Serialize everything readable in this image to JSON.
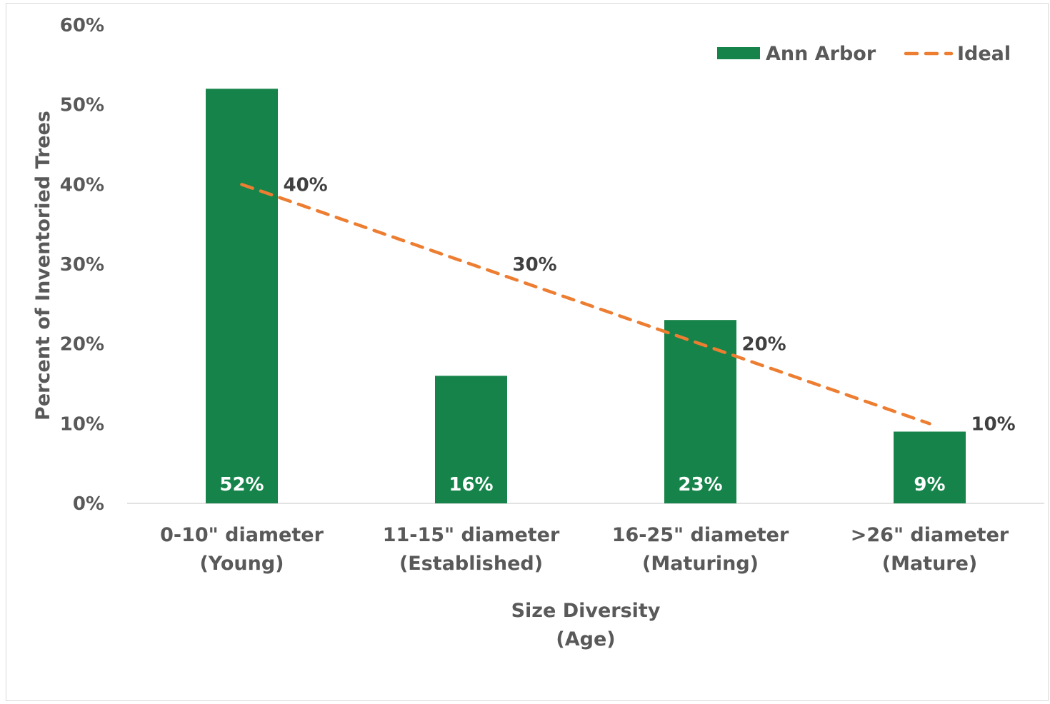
{
  "colors": {
    "bar": "#16844a",
    "ideal": "#ed7d31",
    "axis": "#d9d9d9",
    "text": "#595959"
  },
  "chart_data": {
    "type": "bar",
    "title": "",
    "xlabel": [
      "Size Diversity",
      "(Age)"
    ],
    "ylabel": "Percent of Inventoried Trees",
    "ylim": [
      0,
      60
    ],
    "yticks": [
      "0%",
      "10%",
      "20%",
      "30%",
      "40%",
      "50%",
      "60%"
    ],
    "grid": false,
    "legend_position": "top-right",
    "categories": [
      [
        "0-10\" diameter",
        "(Young)"
      ],
      [
        "11-15\" diameter",
        "(Established)"
      ],
      [
        "16-25\" diameter",
        "(Maturing)"
      ],
      [
        ">26\" diameter",
        "(Mature)"
      ]
    ],
    "series": [
      {
        "name": "Ann Arbor",
        "type": "bar",
        "values": [
          52,
          16,
          23,
          9
        ],
        "labels": [
          "52%",
          "16%",
          "23%",
          "9%"
        ]
      },
      {
        "name": "Ideal",
        "type": "line",
        "style": "dashed",
        "values": [
          40,
          30,
          20,
          10
        ],
        "labels": [
          "40%",
          "30%",
          "20%",
          "10%"
        ]
      }
    ]
  }
}
